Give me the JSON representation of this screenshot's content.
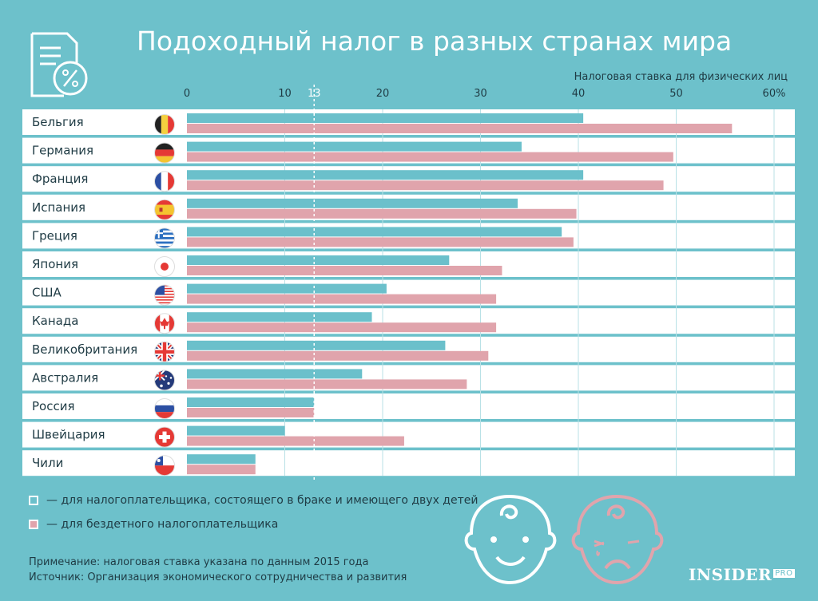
{
  "title": "Подоходный налог в разных странах мира",
  "axis_title": "Налоговая ставка для физических лиц",
  "colors": {
    "married": "#6bc0cb",
    "childless": "#e0a4ac",
    "background": "#6dc1cb"
  },
  "legend": {
    "married": "— для налогоплательщика, состоящего в браке и имеющего двух детей",
    "childless": "— для бездетного налогоплательщика"
  },
  "note": "Примечание: налоговая ставка указана по данным 2015 года",
  "source": "Источник: Организация экономического сотрудничества и развития",
  "logo": {
    "main": "INSIDER",
    "sub": "PRO"
  },
  "icons": [
    "document-percent-icon",
    "happy-baby-icon",
    "sad-baby-icon"
  ],
  "chart_data": {
    "type": "bar",
    "orientation": "horizontal",
    "title": "Подоходный налог в разных странах мира",
    "xlabel": "Налоговая ставка для физических лиц",
    "xlim": [
      0,
      62
    ],
    "ticks": [
      {
        "value": 0,
        "label": "0"
      },
      {
        "value": 10,
        "label": "10"
      },
      {
        "value": 13,
        "label": "13"
      },
      {
        "value": 20,
        "label": "20"
      },
      {
        "value": 30,
        "label": "30"
      },
      {
        "value": 40,
        "label": "40"
      },
      {
        "value": 50,
        "label": "50"
      },
      {
        "value": 60,
        "label": "60%"
      }
    ],
    "reference_line": 13,
    "categories": [
      "Бельгия",
      "Германия",
      "Франция",
      "Испания",
      "Греция",
      "Япония",
      "США",
      "Канада",
      "Великобритания",
      "Австралия",
      "Россия",
      "Швейцария",
      "Чили"
    ],
    "flags": [
      "belgium",
      "germany",
      "france",
      "spain",
      "greece",
      "japan",
      "usa",
      "canada",
      "uk",
      "australia",
      "russia",
      "switzerland",
      "chile"
    ],
    "series": [
      {
        "values": [
          40.5,
          34.2,
          40.5,
          33.8,
          38.3,
          26.8,
          20.4,
          18.9,
          26.4,
          17.9,
          13.0,
          10.0,
          7.0
        ]
      },
      {
        "values": [
          55.7,
          49.7,
          48.7,
          39.8,
          39.5,
          32.2,
          31.6,
          31.6,
          30.8,
          28.6,
          13.0,
          22.2,
          7.0
        ]
      }
    ]
  }
}
